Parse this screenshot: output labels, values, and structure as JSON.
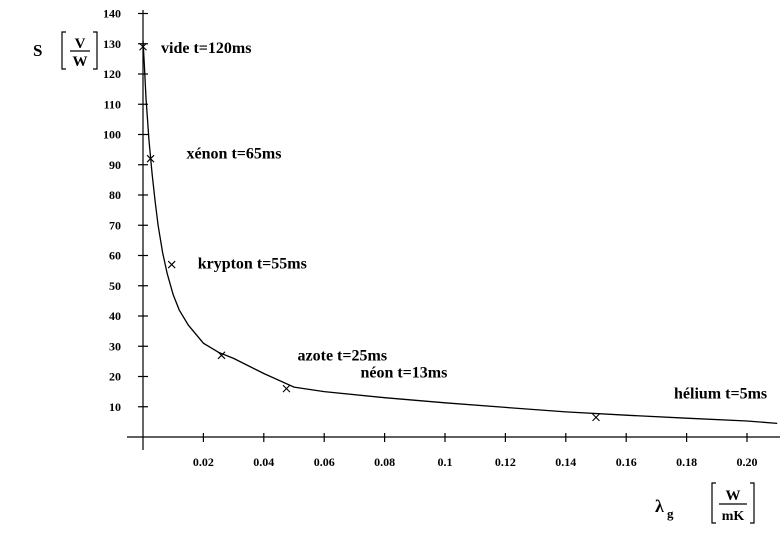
{
  "chart_data": {
    "type": "scatter",
    "y_axis": {
      "symbol": "S",
      "unit_numerator": "V",
      "unit_denominator": "W",
      "range": [
        0,
        140
      ],
      "ticks": [
        10,
        20,
        30,
        40,
        50,
        60,
        70,
        80,
        90,
        100,
        110,
        120,
        130,
        140
      ],
      "tick_labels": [
        "10",
        "20",
        "30",
        "40",
        "50",
        "60",
        "70",
        "80",
        "90",
        "100",
        "110",
        "120",
        "130",
        "140"
      ]
    },
    "x_axis": {
      "symbol": "λ",
      "subscript": "g",
      "unit_numerator": "W",
      "unit_denominator": "mK",
      "range": [
        0,
        0.21
      ],
      "ticks": [
        0.02,
        0.04,
        0.06,
        0.08,
        0.1,
        0.12,
        0.14,
        0.16,
        0.18,
        0.2
      ],
      "tick_labels": [
        "0.02",
        "0.04",
        "0.06",
        "0.08",
        "0.1",
        "0.12",
        "0.14",
        "0.16",
        "0.18",
        "0.20"
      ]
    },
    "points": [
      {
        "label": "vide t=120ms",
        "x": 0.0,
        "y": 129
      },
      {
        "label": "xénon t=65ms",
        "x": 0.0025,
        "y": 92
      },
      {
        "label": "krypton t=55ms",
        "x": 0.0095,
        "y": 57
      },
      {
        "label": "azote t=25ms",
        "x": 0.026,
        "y": 27
      },
      {
        "label": "néon t=13ms",
        "x": 0.0475,
        "y": 16
      },
      {
        "label": "hélium t=5ms",
        "x": 0.15,
        "y": 6.5
      }
    ],
    "curve": {
      "x": [
        0.0,
        0.0005,
        0.001,
        0.002,
        0.003,
        0.004,
        0.005,
        0.0065,
        0.008,
        0.01,
        0.012,
        0.015,
        0.02,
        0.025,
        0.03,
        0.04,
        0.05,
        0.06,
        0.08,
        0.1,
        0.12,
        0.14,
        0.16,
        0.18,
        0.2,
        0.21
      ],
      "y": [
        131,
        122,
        112,
        98,
        87,
        78,
        70,
        61,
        54,
        47,
        42,
        37,
        31,
        28,
        26,
        21,
        16.5,
        15,
        13,
        11.3,
        9.8,
        8.3,
        7.2,
        6.2,
        5.3,
        4.5
      ]
    }
  }
}
